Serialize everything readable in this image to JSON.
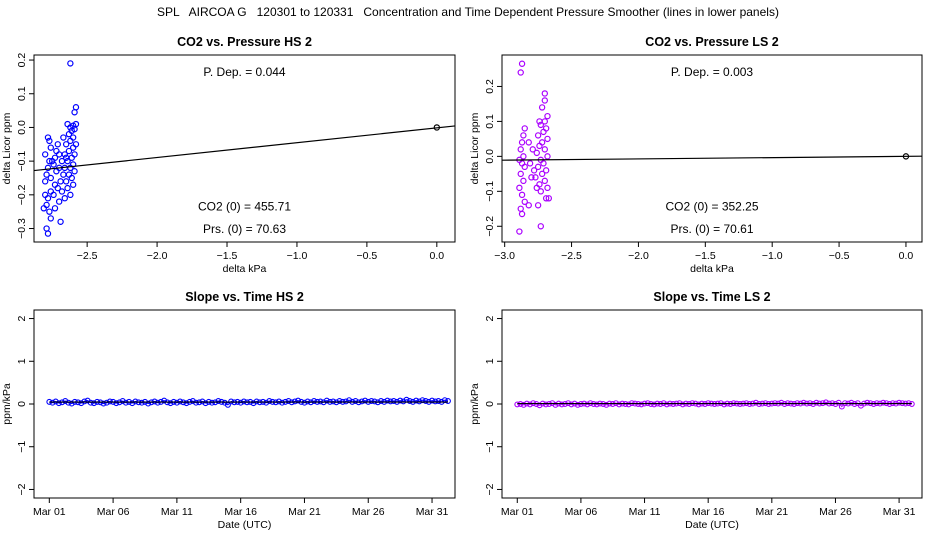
{
  "page_title": "SPL   AIRCOA G   120301 to 120331   Concentration and Time Dependent Pressure Smoother (lines in lower panels)",
  "chart_data": [
    {
      "id": "hs-pressure",
      "type": "scatter",
      "title": "CO2 vs. Pressure HS 2",
      "xlabel": "delta kPa",
      "ylabel": "delta Licor ppm",
      "xlim": [
        -2.88,
        0.13
      ],
      "ylim": [
        -0.34,
        0.215
      ],
      "xticks": [
        -2.5,
        -2.0,
        -1.5,
        -1.0,
        -0.5,
        0.0
      ],
      "xtick_labels": [
        "−2.5",
        "−2.0",
        "−1.5",
        "−1.0",
        "−0.5",
        "0.0"
      ],
      "yticks": [
        -0.3,
        -0.2,
        -0.1,
        0.0,
        0.1,
        0.2
      ],
      "ytick_labels": [
        "−0.3",
        "−0.2",
        "−0.1",
        "0.0",
        "0.1",
        "0.2"
      ],
      "color": "#0000ff",
      "points": [
        [
          -2.62,
          0.19
        ],
        [
          -2.58,
          0.06
        ],
        [
          -2.59,
          0.045
        ],
        [
          -2.58,
          0.01
        ],
        [
          -2.6,
          0.005
        ],
        [
          -2.62,
          0.0
        ],
        [
          -2.64,
          0.01
        ],
        [
          -2.59,
          -0.005
        ],
        [
          -2.61,
          -0.01
        ],
        [
          -2.63,
          -0.02
        ],
        [
          -2.6,
          -0.03
        ],
        [
          -2.62,
          -0.04
        ],
        [
          -2.58,
          -0.05
        ],
        [
          -2.65,
          -0.05
        ],
        [
          -2.6,
          -0.06
        ],
        [
          -2.63,
          -0.07
        ],
        [
          -2.66,
          -0.08
        ],
        [
          -2.59,
          -0.08
        ],
        [
          -2.61,
          -0.09
        ],
        [
          -2.64,
          -0.1
        ],
        [
          -2.68,
          -0.1
        ],
        [
          -2.6,
          -0.11
        ],
        [
          -2.62,
          -0.12
        ],
        [
          -2.66,
          -0.12
        ],
        [
          -2.7,
          -0.12
        ],
        [
          -2.59,
          -0.13
        ],
        [
          -2.63,
          -0.14
        ],
        [
          -2.67,
          -0.14
        ],
        [
          -2.61,
          -0.15
        ],
        [
          -2.65,
          -0.16
        ],
        [
          -2.69,
          -0.16
        ],
        [
          -2.6,
          -0.17
        ],
        [
          -2.64,
          -0.18
        ],
        [
          -2.68,
          -0.19
        ],
        [
          -2.62,
          -0.2
        ],
        [
          -2.66,
          -0.21
        ],
        [
          -2.7,
          -0.22
        ],
        [
          -2.71,
          -0.05
        ],
        [
          -2.72,
          -0.07
        ],
        [
          -2.73,
          -0.09
        ],
        [
          -2.74,
          -0.11
        ],
        [
          -2.72,
          -0.13
        ],
        [
          -2.76,
          -0.15
        ],
        [
          -2.73,
          -0.17
        ],
        [
          -2.71,
          -0.18
        ],
        [
          -2.77,
          -0.1
        ],
        [
          -2.78,
          -0.12
        ],
        [
          -2.79,
          -0.14
        ],
        [
          -2.8,
          -0.16
        ],
        [
          -2.76,
          -0.19
        ],
        [
          -2.78,
          -0.21
        ],
        [
          -2.79,
          -0.23
        ],
        [
          -2.81,
          -0.24
        ],
        [
          -2.77,
          -0.25
        ],
        [
          -2.76,
          -0.27
        ],
        [
          -2.79,
          -0.3
        ],
        [
          -2.78,
          -0.315
        ],
        [
          -2.8,
          -0.2
        ],
        [
          -2.77,
          -0.04
        ],
        [
          -2.76,
          -0.06
        ],
        [
          -2.7,
          -0.08
        ],
        [
          -2.69,
          -0.28
        ],
        [
          -2.73,
          -0.24
        ],
        [
          -2.74,
          -0.2
        ],
        [
          -2.75,
          -0.1
        ],
        [
          -2.78,
          -0.03
        ],
        [
          -2.8,
          -0.08
        ],
        [
          -2.67,
          -0.03
        ],
        [
          -2.65,
          -0.09
        ]
      ],
      "fit_line": [
        [
          -2.88,
          -0.128
        ],
        [
          0.13,
          0.0045
        ]
      ],
      "zero_point": [
        0.0,
        0.0
      ],
      "annotations": {
        "p_dep": "P. Dep. =  0.044",
        "co2_zero": "CO2 (0) =  455.71",
        "prs_zero": "Prs. (0) =  70.63"
      }
    },
    {
      "id": "ls-pressure",
      "type": "scatter",
      "title": "CO2 vs. Pressure LS 2",
      "xlabel": "delta kPa",
      "ylabel": "delta Licor ppm",
      "xlim": [
        -3.02,
        0.12
      ],
      "ylim": [
        -0.245,
        0.29
      ],
      "xticks": [
        -3.0,
        -2.5,
        -2.0,
        -1.5,
        -1.0,
        -0.5,
        0.0
      ],
      "xtick_labels": [
        "−3.0",
        "−2.5",
        "−2.0",
        "−1.5",
        "−1.0",
        "−0.5",
        "0.0"
      ],
      "yticks": [
        -0.2,
        -0.1,
        0.0,
        0.1,
        0.2
      ],
      "ytick_labels": [
        "−0.2",
        "−0.1",
        "0.0",
        "0.1",
        "0.2"
      ],
      "color": "#aa00ff",
      "points": [
        [
          -2.87,
          0.265
        ],
        [
          -2.88,
          0.24
        ],
        [
          -2.7,
          0.18
        ],
        [
          -2.7,
          0.16
        ],
        [
          -2.72,
          0.14
        ],
        [
          -2.68,
          0.115
        ],
        [
          -2.7,
          0.1
        ],
        [
          -2.73,
          0.09
        ],
        [
          -2.69,
          0.08
        ],
        [
          -2.71,
          0.07
        ],
        [
          -2.75,
          0.06
        ],
        [
          -2.68,
          0.05
        ],
        [
          -2.72,
          0.04
        ],
        [
          -2.74,
          0.03
        ],
        [
          -2.7,
          0.02
        ],
        [
          -2.76,
          0.01
        ],
        [
          -2.68,
          0.0
        ],
        [
          -2.73,
          -0.01
        ],
        [
          -2.71,
          -0.02
        ],
        [
          -2.75,
          -0.03
        ],
        [
          -2.69,
          -0.04
        ],
        [
          -2.72,
          -0.05
        ],
        [
          -2.77,
          -0.06
        ],
        [
          -2.7,
          -0.07
        ],
        [
          -2.74,
          -0.08
        ],
        [
          -2.68,
          -0.09
        ],
        [
          -2.73,
          -0.1
        ],
        [
          -2.69,
          -0.12
        ],
        [
          -2.75,
          -0.14
        ],
        [
          -2.73,
          -0.2
        ],
        [
          -2.85,
          0.08
        ],
        [
          -2.86,
          0.06
        ],
        [
          -2.87,
          0.04
        ],
        [
          -2.88,
          0.02
        ],
        [
          -2.86,
          0.0
        ],
        [
          -2.89,
          -0.01
        ],
        [
          -2.87,
          -0.02
        ],
        [
          -2.85,
          -0.03
        ],
        [
          -2.88,
          -0.05
        ],
        [
          -2.86,
          -0.07
        ],
        [
          -2.89,
          -0.09
        ],
        [
          -2.87,
          -0.11
        ],
        [
          -2.85,
          -0.13
        ],
        [
          -2.88,
          -0.15
        ],
        [
          -2.87,
          -0.165
        ],
        [
          -2.89,
          -0.215
        ],
        [
          -2.82,
          0.04
        ],
        [
          -2.81,
          -0.02
        ],
        [
          -2.8,
          -0.06
        ],
        [
          -2.82,
          -0.14
        ],
        [
          -2.78,
          -0.04
        ],
        [
          -2.79,
          0.02
        ],
        [
          -2.67,
          -0.12
        ],
        [
          -2.76,
          -0.09
        ],
        [
          -2.74,
          0.1
        ]
      ],
      "fit_line": [
        [
          -3.02,
          -0.011
        ],
        [
          0.12,
          0.0005
        ]
      ],
      "zero_point": [
        0.0,
        0.0
      ],
      "annotations": {
        "p_dep": "P. Dep. =  0.003",
        "co2_zero": "CO2 (0) =  352.25",
        "prs_zero": "Prs. (0) =  70.61"
      }
    },
    {
      "id": "hs-time",
      "type": "line",
      "title": "Slope vs. Time HS 2",
      "xlabel": "Date (UTC)",
      "ylabel": "ppm/kPa",
      "xlim": [
        -1.2,
        31.8
      ],
      "ylim": [
        -2.2,
        2.2
      ],
      "xticks": [
        0,
        5,
        10,
        15,
        20,
        25,
        30
      ],
      "xtick_labels": [
        "Mar 01",
        "Mar 06",
        "Mar 11",
        "Mar 16",
        "Mar 21",
        "Mar 26",
        "Mar 31"
      ],
      "yticks": [
        -2,
        -1,
        0,
        1,
        2
      ],
      "ytick_labels": [
        "−2",
        "−1",
        "0",
        "1",
        "2"
      ],
      "color": "#0000ff",
      "series_start": 0,
      "series_step": 0.25,
      "values": [
        0.05,
        0.03,
        0.06,
        0.02,
        0.04,
        0.07,
        0.03,
        0.01,
        0.05,
        0.04,
        0.02,
        0.06,
        0.08,
        0.03,
        0.02,
        0.05,
        0.04,
        0.01,
        0.03,
        0.06,
        0.05,
        0.02,
        0.04,
        0.07,
        0.03,
        0.05,
        0.02,
        0.06,
        0.04,
        0.03,
        0.05,
        0.01,
        0.04,
        0.06,
        0.03,
        0.05,
        0.08,
        0.04,
        0.02,
        0.05,
        0.03,
        0.06,
        0.04,
        0.02,
        0.05,
        0.07,
        0.03,
        0.04,
        0.06,
        0.02,
        0.05,
        0.03,
        0.04,
        0.07,
        0.05,
        0.03,
        -0.02,
        0.06,
        0.04,
        0.05,
        0.03,
        0.06,
        0.04,
        0.05,
        0.02,
        0.06,
        0.04,
        0.05,
        0.03,
        0.07,
        0.05,
        0.04,
        0.06,
        0.03,
        0.05,
        0.07,
        0.04,
        0.06,
        0.08,
        0.05,
        0.03,
        0.06,
        0.04,
        0.07,
        0.05,
        0.06,
        0.04,
        0.08,
        0.05,
        0.06,
        0.04,
        0.07,
        0.05,
        0.06,
        0.09,
        0.05,
        0.07,
        0.04,
        0.06,
        0.08,
        0.05,
        0.07,
        0.06,
        0.04,
        0.07,
        0.05,
        0.08,
        0.06,
        0.07,
        0.05,
        0.08,
        0.06,
        0.1,
        0.07,
        0.05,
        0.08,
        0.06,
        0.09,
        0.07,
        0.05,
        0.08,
        0.06,
        0.07,
        0.05,
        0.09,
        0.07
      ],
      "smooth": 0.045
    },
    {
      "id": "ls-time",
      "type": "line",
      "title": "Slope vs. Time LS 2",
      "xlabel": "Date (UTC)",
      "ylabel": "ppm/kPa",
      "xlim": [
        -1.2,
        31.8
      ],
      "ylim": [
        -2.2,
        2.2
      ],
      "xticks": [
        0,
        5,
        10,
        15,
        20,
        25,
        30
      ],
      "xtick_labels": [
        "Mar 01",
        "Mar 06",
        "Mar 11",
        "Mar 16",
        "Mar 21",
        "Mar 26",
        "Mar 31"
      ],
      "yticks": [
        -2,
        -1,
        0,
        1,
        2
      ],
      "ytick_labels": [
        "−2",
        "−1",
        "0",
        "1",
        "2"
      ],
      "color": "#aa00ff",
      "series_start": 0,
      "series_step": 0.25,
      "values": [
        -0.01,
        0.0,
        -0.02,
        0.01,
        -0.01,
        0.02,
        0.0,
        -0.03,
        0.01,
        -0.01,
        0.0,
        0.02,
        -0.02,
        0.01,
        -0.01,
        0.0,
        0.02,
        -0.01,
        0.01,
        -0.02,
        0.0,
        0.01,
        -0.01,
        0.02,
        0.0,
        -0.01,
        0.01,
        0.0,
        -0.02,
        0.01,
        0.0,
        0.02,
        -0.01,
        0.01,
        0.0,
        -0.01,
        0.02,
        0.01,
        0.0,
        -0.01,
        0.01,
        0.02,
        0.0,
        -0.01,
        0.01,
        0.0,
        0.02,
        -0.01,
        0.01,
        0.0,
        0.01,
        0.02,
        -0.01,
        0.01,
        0.0,
        0.02,
        0.01,
        -0.01,
        0.01,
        0.0,
        0.02,
        0.01,
        0.0,
        0.01,
        0.02,
        -0.01,
        0.01,
        0.0,
        0.02,
        0.01,
        0.0,
        0.01,
        0.02,
        0.0,
        0.01,
        0.03,
        0.0,
        0.01,
        0.02,
        0.0,
        0.01,
        0.02,
        0.01,
        0.03,
        0.0,
        0.02,
        0.01,
        0.0,
        0.02,
        0.01,
        0.03,
        0.01,
        0.02,
        0.0,
        0.03,
        0.01,
        0.02,
        0.04,
        0.01,
        0.02,
        0.0,
        0.03,
        -0.06,
        0.02,
        0.01,
        0.03,
        0.0,
        0.02,
        -0.04,
        0.01,
        0.03,
        0.02,
        0.0,
        0.02,
        0.01,
        0.03,
        0.02,
        0.0,
        0.02,
        0.01,
        0.03,
        0.02,
        0.01,
        0.02,
        0.0
      ],
      "smooth": 0.01
    }
  ]
}
